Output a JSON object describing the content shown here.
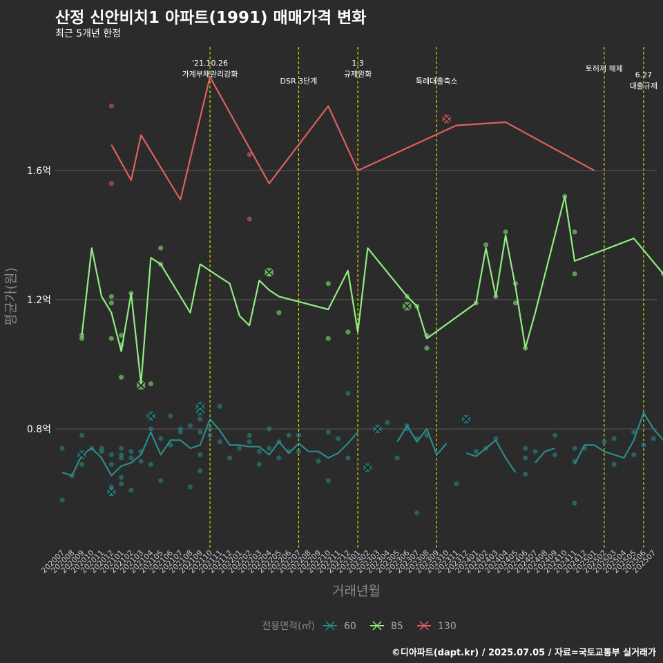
{
  "title": "산정 신안비치1 아파트(1991) 매매가격 변화",
  "subtitle": "최근 5개년 한정",
  "footer": "©디아파트(dapt.kr) / 2025.07.05 / 자료=국토교통부 실거래가",
  "chart_data": {
    "type": "line",
    "xlabel": "거래년월",
    "ylabel": "평균가(원)",
    "categories": [
      "202007",
      "202008",
      "202009",
      "202010",
      "202011",
      "202012",
      "202101",
      "202102",
      "202103",
      "202104",
      "202105",
      "202106",
      "202107",
      "202108",
      "202109",
      "202110",
      "202111",
      "202112",
      "202201",
      "202202",
      "202203",
      "202204",
      "202205",
      "202206",
      "202207",
      "202208",
      "202209",
      "202210",
      "202211",
      "202212",
      "202301",
      "202302",
      "202303",
      "202304",
      "202305",
      "202306",
      "202307",
      "202308",
      "202309",
      "202310",
      "202311",
      "202312",
      "202401",
      "202402",
      "202403",
      "202404",
      "202405",
      "202406",
      "202407",
      "202408",
      "202409",
      "202410",
      "202411",
      "202412",
      "202501",
      "202502",
      "202503",
      "202504",
      "202505",
      "202506",
      "202507"
    ],
    "ylim": [
      0.4,
      1.75
    ],
    "y_ticks": [
      0.8,
      1.2,
      1.6
    ],
    "y_tick_labels": [
      "0.8억",
      "1.2억",
      "1.6억"
    ],
    "grid": true,
    "legend": {
      "title": "전용면적(㎡)",
      "position": "bottom",
      "entries": [
        "60",
        "85",
        "130"
      ]
    },
    "series": [
      {
        "name": "60",
        "color": "#2a8c8c",
        "line": [
          [
            "202007",
            0.665
          ],
          [
            "202008",
            0.655
          ],
          [
            "202009",
            0.72
          ],
          [
            "202010",
            0.74
          ],
          [
            "202011",
            0.71
          ],
          [
            "202012",
            0.655
          ],
          [
            "202101",
            0.685
          ],
          [
            "202102",
            0.695
          ],
          [
            "202103",
            0.72
          ],
          [
            "202104",
            0.79
          ],
          [
            "202105",
            0.72
          ],
          [
            "202106",
            0.765
          ],
          [
            "202107",
            0.765
          ],
          [
            "202108",
            0.74
          ],
          [
            "202109",
            0.75
          ],
          [
            "202110",
            0.83
          ],
          [
            "202111",
            0.795
          ],
          [
            "202112",
            0.75
          ],
          [
            "202201",
            0.75
          ],
          [
            "202202",
            0.745
          ],
          [
            "202203",
            0.745
          ],
          [
            "202204",
            0.72
          ],
          [
            "202205",
            0.76
          ],
          [
            "202206",
            0.725
          ],
          [
            "202207",
            0.755
          ],
          [
            "202208",
            0.73
          ],
          [
            "202209",
            0.73
          ],
          [
            "202210",
            0.71
          ],
          [
            "202211",
            0.725
          ],
          [
            "202212",
            0.755
          ],
          [
            "202301",
            0.79
          ],
          null,
          [
            "202305",
            0.76
          ],
          [
            "202306",
            0.81
          ],
          [
            "202307",
            0.76
          ],
          [
            "202308",
            0.8
          ],
          [
            "202309",
            0.72
          ],
          [
            "202310",
            0.755
          ],
          null,
          [
            "202312",
            0.725
          ],
          [
            "202401",
            0.715
          ],
          [
            "202402",
            0.74
          ],
          [
            "202403",
            0.765
          ],
          [
            "202404",
            0.71
          ],
          [
            "202405",
            0.665
          ],
          null,
          [
            "202407",
            0.695
          ],
          [
            "202408",
            0.73
          ],
          [
            "202409",
            0.74
          ],
          null,
          [
            "202411",
            0.69
          ],
          [
            "202412",
            0.75
          ],
          [
            "202501",
            0.75
          ],
          [
            "202502",
            0.73
          ],
          [
            "202503",
            0.72
          ],
          [
            "202504",
            0.71
          ],
          [
            "202505",
            0.765
          ],
          [
            "202506",
            0.85
          ],
          [
            "202507",
            0.8
          ],
          [
            "202508",
            0.765
          ]
        ],
        "points": [
          [
            "202007",
            0.58
          ],
          [
            "202007",
            0.74
          ],
          [
            "202008",
            0.655
          ],
          [
            "202009",
            0.69
          ],
          [
            "202009",
            0.78
          ],
          [
            "202010",
            0.74
          ],
          [
            "202011",
            0.73
          ],
          [
            "202011",
            0.74
          ],
          [
            "202012",
            0.6
          ],
          [
            "202012",
            0.62
          ],
          [
            "202012",
            0.61
          ],
          [
            "202012",
            0.72
          ],
          [
            "202012",
            0.69
          ],
          [
            "202101",
            0.63
          ],
          [
            "202101",
            0.65
          ],
          [
            "202101",
            0.74
          ],
          [
            "202101",
            0.72
          ],
          [
            "202101",
            0.71
          ],
          [
            "202102",
            0.61
          ],
          [
            "202102",
            0.71
          ],
          [
            "202102",
            0.73
          ],
          [
            "202103",
            0.7
          ],
          [
            "202103",
            0.73
          ],
          [
            "202104",
            0.84
          ],
          [
            "202104",
            0.69
          ],
          [
            "202104",
            0.8
          ],
          [
            "202105",
            0.64
          ],
          [
            "202105",
            0.77
          ],
          [
            "202106",
            0.84
          ],
          [
            "202106",
            0.75
          ],
          [
            "202107",
            0.79
          ],
          [
            "202107",
            0.8
          ],
          [
            "202108",
            0.62
          ],
          [
            "202108",
            0.81
          ],
          [
            "202109",
            0.67
          ],
          [
            "202109",
            0.72
          ],
          [
            "202109",
            0.83
          ],
          [
            "202109",
            0.79
          ],
          [
            "202110",
            0.78
          ],
          [
            "202110",
            0.8
          ],
          [
            "202111",
            0.87
          ],
          [
            "202111",
            0.76
          ],
          [
            "202112",
            0.71
          ],
          [
            "202201",
            0.74
          ],
          [
            "202202",
            0.78
          ],
          [
            "202202",
            0.76
          ],
          [
            "202203",
            0.69
          ],
          [
            "202203",
            0.73
          ],
          [
            "202204",
            0.8
          ],
          [
            "202204",
            0.74
          ],
          [
            "202205",
            0.76
          ],
          [
            "202205",
            0.71
          ],
          [
            "202206",
            0.78
          ],
          [
            "202206",
            0.73
          ],
          [
            "202207",
            0.78
          ],
          [
            "202207",
            0.73
          ],
          [
            "202209",
            0.7
          ],
          [
            "202210",
            0.79
          ],
          [
            "202210",
            0.64
          ],
          [
            "202211",
            0.77
          ],
          [
            "202212",
            0.91
          ],
          [
            "202212",
            0.71
          ],
          [
            "202303",
            0.8
          ],
          [
            "202304",
            0.82
          ],
          [
            "202305",
            0.71
          ],
          [
            "202306",
            0.8
          ],
          [
            "202306",
            0.81
          ],
          [
            "202307",
            0.54
          ],
          [
            "202307",
            0.77
          ],
          [
            "202308",
            0.78
          ],
          [
            "202311",
            0.63
          ],
          [
            "202401",
            0.73
          ],
          [
            "202402",
            0.74
          ],
          [
            "202403",
            0.77
          ],
          [
            "202406",
            0.66
          ],
          [
            "202406",
            0.71
          ],
          [
            "202406",
            0.74
          ],
          [
            "202407",
            0.73
          ],
          [
            "202409",
            0.78
          ],
          [
            "202409",
            0.72
          ],
          [
            "202411",
            0.74
          ],
          [
            "202411",
            0.57
          ],
          [
            "202411",
            0.7
          ],
          [
            "202412",
            0.74
          ],
          [
            "202502",
            0.76
          ],
          [
            "202503",
            0.69
          ],
          [
            "202503",
            0.77
          ],
          [
            "202505",
            0.72
          ],
          [
            "202505",
            0.79
          ],
          [
            "202506",
            0.75
          ],
          [
            "202507",
            0.77
          ]
        ],
        "x_marks": [
          [
            "202009",
            0.72
          ],
          [
            "202012",
            0.605
          ],
          [
            "202104",
            0.84
          ],
          [
            "202109",
            0.855
          ],
          [
            "202109",
            0.87
          ],
          [
            "202302",
            0.68
          ],
          [
            "202303",
            0.8
          ],
          [
            "202312",
            0.83
          ]
        ]
      },
      {
        "name": "85",
        "color": "#90ee80",
        "line": [
          [
            "202009",
            1.09
          ],
          [
            "202010",
            1.36
          ],
          [
            "202011",
            1.21
          ],
          [
            "202012",
            1.16
          ],
          [
            "202101",
            1.04
          ],
          [
            "202102",
            1.22
          ],
          [
            "202103",
            0.94
          ],
          [
            "202104",
            1.33
          ],
          [
            "202105",
            1.31
          ],
          [
            "202106",
            1.26
          ],
          [
            "202108",
            1.16
          ],
          [
            "202109",
            1.31
          ],
          [
            "202111",
            1.27
          ],
          [
            "202112",
            1.25
          ],
          [
            "202201",
            1.15
          ],
          [
            "202202",
            1.12
          ],
          [
            "202203",
            1.26
          ],
          [
            "202204",
            1.23
          ],
          [
            "202205",
            1.21
          ],
          [
            "202210",
            1.17
          ],
          [
            "202212",
            1.29
          ],
          [
            "202301",
            1.1
          ],
          [
            "202302",
            1.36
          ],
          [
            "202306",
            1.21
          ],
          [
            "202307",
            1.18
          ],
          [
            "202308",
            1.08
          ],
          [
            "202401",
            1.19
          ],
          [
            "202402",
            1.36
          ],
          [
            "202403",
            1.21
          ],
          [
            "202404",
            1.4
          ],
          [
            "202405",
            1.24
          ],
          [
            "202406",
            1.05
          ],
          [
            "202407",
            1.16
          ],
          [
            "202410",
            1.52
          ],
          [
            "202411",
            1.32
          ],
          [
            "202505",
            1.39
          ],
          [
            "202508",
            1.28
          ]
        ],
        "points": [
          [
            "202009",
            1.08
          ],
          [
            "202009",
            1.09
          ],
          [
            "202012",
            1.19
          ],
          [
            "202012",
            1.08
          ],
          [
            "202012",
            1.21
          ],
          [
            "202101",
            1.06
          ],
          [
            "202101",
            1.09
          ],
          [
            "202101",
            0.96
          ],
          [
            "202102",
            1.22
          ],
          [
            "202104",
            0.94
          ],
          [
            "202105",
            1.36
          ],
          [
            "202105",
            1.31
          ],
          [
            "202204",
            1.28
          ],
          [
            "202205",
            1.16
          ],
          [
            "202210",
            1.25
          ],
          [
            "202210",
            1.08
          ],
          [
            "202212",
            1.1
          ],
          [
            "202306",
            1.21
          ],
          [
            "202307",
            1.18
          ],
          [
            "202308",
            1.09
          ],
          [
            "202308",
            1.05
          ],
          [
            "202401",
            1.19
          ],
          [
            "202402",
            1.37
          ],
          [
            "202403",
            1.21
          ],
          [
            "202404",
            1.41
          ],
          [
            "202405",
            1.25
          ],
          [
            "202405",
            1.19
          ],
          [
            "202406",
            1.05
          ],
          [
            "202410",
            1.52
          ],
          [
            "202411",
            1.41
          ],
          [
            "202411",
            1.28
          ],
          [
            "202508",
            1.28
          ]
        ],
        "x_marks": [
          [
            "202103",
            0.935
          ],
          [
            "202204",
            1.285
          ],
          [
            "202306",
            1.18
          ]
        ]
      },
      {
        "name": "130",
        "color": "#e06060",
        "line": [
          [
            "202012",
            1.68
          ],
          [
            "202102",
            1.57
          ],
          [
            "202103",
            1.71
          ],
          [
            "202107",
            1.51
          ],
          [
            "202110",
            1.89
          ],
          [
            "202204",
            1.56
          ],
          [
            "202210",
            1.8
          ],
          [
            "202301",
            1.6
          ],
          [
            "202311",
            1.74
          ],
          [
            "202404",
            1.75
          ],
          [
            "202501",
            1.6
          ]
        ],
        "points": [
          [
            "202012",
            1.8
          ],
          [
            "202012",
            1.56
          ],
          [
            "202202",
            1.65
          ],
          [
            "202202",
            1.45
          ],
          [
            "202310",
            1.76
          ]
        ],
        "x_marks": [
          [
            "202310",
            1.76
          ]
        ]
      }
    ],
    "annotations": [
      {
        "x": "202110",
        "lines": [
          "'21.10.26",
          "가계부채관리강화"
        ],
        "row": 1
      },
      {
        "x": "202207",
        "lines": [
          "DSR 3단계"
        ],
        "row": 2
      },
      {
        "x": "202301",
        "lines": [
          "1.3",
          "규제완화"
        ],
        "row": 1
      },
      {
        "x": "202309",
        "lines": [
          "특례대출축소"
        ],
        "row": 2
      },
      {
        "x": "202502",
        "lines": [
          "토허제 해제"
        ],
        "row": 1
      },
      {
        "x": "202506",
        "lines": [
          "6.27",
          "대출규제"
        ],
        "row": 2
      }
    ]
  }
}
